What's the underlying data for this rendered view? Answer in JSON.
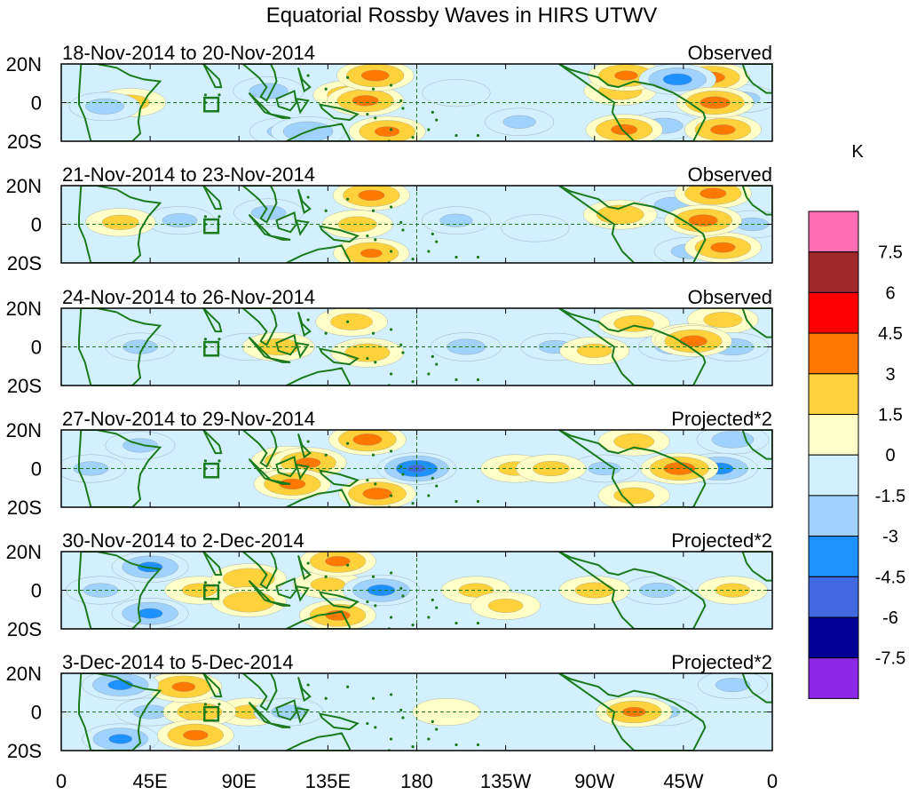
{
  "chart_data": {
    "type": "heatmap",
    "title": "Equatorial Rossby Waves in HIRS UTWV",
    "units": "K",
    "x_ticks": [
      "0",
      "45E",
      "90E",
      "135E",
      "180",
      "135W",
      "90W",
      "45W",
      "0"
    ],
    "x_range_deg": [
      0,
      360
    ],
    "y_ticks": [
      "20N",
      "0",
      "20S"
    ],
    "y_range_deg": [
      -20,
      20
    ],
    "colorbar": {
      "labels": [
        "7.5",
        "6",
        "4.5",
        "3",
        "1.5",
        "0",
        "-1.5",
        "-3",
        "-4.5",
        "-6",
        "-7.5"
      ],
      "levels": [
        9,
        7.5,
        6,
        4.5,
        3,
        1.5,
        0,
        -1.5,
        -3,
        -4.5,
        -6,
        -7.5,
        -9
      ],
      "colors": [
        "#ff6eb4",
        "#a0282d",
        "#ff0000",
        "#ff7800",
        "#ffd23c",
        "#ffffc8",
        "#d2f0ff",
        "#a0d2ff",
        "#1e90ff",
        "#4169e1",
        "#000096",
        "#8c28e6"
      ]
    },
    "panels": [
      {
        "date_range": "18-Nov-2014 to 20-Nov-2014",
        "kind": "Observed",
        "anomalies": [
          {
            "lon": 35,
            "lat": 0,
            "value": 1.8
          },
          {
            "lon": 22,
            "lat": -2,
            "value": -1.8
          },
          {
            "lon": 105,
            "lat": 6,
            "value": -1.8
          },
          {
            "lon": 113,
            "lat": -15,
            "value": -1.6
          },
          {
            "lon": 146,
            "lat": 4,
            "value": 2.2
          },
          {
            "lon": 154,
            "lat": 1,
            "value": 3.4
          },
          {
            "lon": 159,
            "lat": 14,
            "value": 3.5
          },
          {
            "lon": 165,
            "lat": -15,
            "value": 3.3
          },
          {
            "lon": 125,
            "lat": -15,
            "value": -2.6
          },
          {
            "lon": 200,
            "lat": 5,
            "value": -1.4
          },
          {
            "lon": 232,
            "lat": -10,
            "value": -1.5
          },
          {
            "lon": 283,
            "lat": 6,
            "value": 2.1
          },
          {
            "lon": 286,
            "lat": 14,
            "value": 3.2
          },
          {
            "lon": 285,
            "lat": -14,
            "value": 3.4
          },
          {
            "lon": 312,
            "lat": 12,
            "value": -3.6
          },
          {
            "lon": 305,
            "lat": -12,
            "value": -1.8
          },
          {
            "lon": 329,
            "lat": 13,
            "value": 3.5
          },
          {
            "lon": 331,
            "lat": 0,
            "value": 3.7
          },
          {
            "lon": 335,
            "lat": -14,
            "value": 3.3
          },
          {
            "lon": 345,
            "lat": 2,
            "value": -1.6
          }
        ]
      },
      {
        "date_range": "21-Nov-2014 to 23-Nov-2014",
        "kind": "Observed",
        "anomalies": [
          {
            "lon": 30,
            "lat": 1,
            "value": 1.7
          },
          {
            "lon": 60,
            "lat": 2,
            "value": -1.6
          },
          {
            "lon": 105,
            "lat": 6,
            "value": -1.6
          },
          {
            "lon": 150,
            "lat": 0,
            "value": 1.8
          },
          {
            "lon": 157,
            "lat": 15,
            "value": 3.4
          },
          {
            "lon": 157,
            "lat": -15,
            "value": 3.1
          },
          {
            "lon": 200,
            "lat": 2,
            "value": -1.5
          },
          {
            "lon": 240,
            "lat": -2,
            "value": -1.4
          },
          {
            "lon": 283,
            "lat": 5,
            "value": 2.4
          },
          {
            "lon": 310,
            "lat": 10,
            "value": -1.8
          },
          {
            "lon": 318,
            "lat": -14,
            "value": -1.7
          },
          {
            "lon": 330,
            "lat": 16,
            "value": 3.4
          },
          {
            "lon": 325,
            "lat": 2,
            "value": 3.6
          },
          {
            "lon": 335,
            "lat": -12,
            "value": 3.3
          },
          {
            "lon": 350,
            "lat": 0,
            "value": -1.5
          }
        ]
      },
      {
        "date_range": "24-Nov-2014 to 26-Nov-2014",
        "kind": "Observed",
        "anomalies": [
          {
            "lon": 40,
            "lat": 0,
            "value": -1.6
          },
          {
            "lon": 95,
            "lat": 0,
            "value": -1.4
          },
          {
            "lon": 110,
            "lat": 0,
            "value": 2.0
          },
          {
            "lon": 147,
            "lat": 13,
            "value": 2.0
          },
          {
            "lon": 155,
            "lat": -3,
            "value": 2.2
          },
          {
            "lon": 205,
            "lat": 0,
            "value": -1.8
          },
          {
            "lon": 250,
            "lat": 0,
            "value": -1.5
          },
          {
            "lon": 270,
            "lat": -2,
            "value": 1.6
          },
          {
            "lon": 290,
            "lat": 12,
            "value": 1.9
          },
          {
            "lon": 310,
            "lat": 0,
            "value": -1.7
          },
          {
            "lon": 318,
            "lat": 4,
            "value": 3.2
          },
          {
            "lon": 320,
            "lat": 3,
            "value": 3.5
          },
          {
            "lon": 340,
            "lat": 0,
            "value": -2.0
          },
          {
            "lon": 335,
            "lat": 14,
            "value": 1.8
          }
        ]
      },
      {
        "date_range": "27-Nov-2014 to 29-Nov-2014",
        "kind": "Projected*2",
        "anomalies": [
          {
            "lon": 15,
            "lat": 0,
            "value": -1.6
          },
          {
            "lon": 40,
            "lat": 12,
            "value": -1.6
          },
          {
            "lon": 115,
            "lat": 4,
            "value": 2.4
          },
          {
            "lon": 117,
            "lat": -8,
            "value": 3.4
          },
          {
            "lon": 125,
            "lat": 3,
            "value": 3.3
          },
          {
            "lon": 155,
            "lat": 15,
            "value": 3.6
          },
          {
            "lon": 160,
            "lat": -13,
            "value": 3.6
          },
          {
            "lon": 180,
            "lat": 0,
            "value": -4.8
          },
          {
            "lon": 230,
            "lat": 0,
            "value": 1.6
          },
          {
            "lon": 248,
            "lat": 0,
            "value": 1.7
          },
          {
            "lon": 275,
            "lat": 0,
            "value": -1.5
          },
          {
            "lon": 290,
            "lat": 14,
            "value": 1.9
          },
          {
            "lon": 290,
            "lat": -14,
            "value": 1.9
          },
          {
            "lon": 313,
            "lat": 0,
            "value": 3.8
          },
          {
            "lon": 333,
            "lat": 0,
            "value": -3.6
          },
          {
            "lon": 340,
            "lat": 15,
            "value": -2.0
          }
        ]
      },
      {
        "date_range": "30-Nov-2014 to 2-Dec-2014",
        "kind": "Projected*2",
        "anomalies": [
          {
            "lon": 45,
            "lat": 12,
            "value": -3.3
          },
          {
            "lon": 45,
            "lat": -12,
            "value": -3.3
          },
          {
            "lon": 20,
            "lat": 0,
            "value": -1.6
          },
          {
            "lon": 70,
            "lat": 0,
            "value": 1.6
          },
          {
            "lon": 95,
            "lat": 6,
            "value": 2.8
          },
          {
            "lon": 95,
            "lat": -6,
            "value": 2.8
          },
          {
            "lon": 140,
            "lat": 15,
            "value": 3.3
          },
          {
            "lon": 140,
            "lat": -13,
            "value": 3.3
          },
          {
            "lon": 135,
            "lat": 3,
            "value": 1.6
          },
          {
            "lon": 162,
            "lat": 0,
            "value": -3.5
          },
          {
            "lon": 210,
            "lat": 0,
            "value": 1.6
          },
          {
            "lon": 225,
            "lat": -8,
            "value": 1.6
          },
          {
            "lon": 270,
            "lat": 0,
            "value": 1.8
          },
          {
            "lon": 302,
            "lat": 0,
            "value": -1.7
          },
          {
            "lon": 340,
            "lat": 0,
            "value": 1.6
          }
        ]
      },
      {
        "date_range": "3-Dec-2014 to 5-Dec-2014",
        "kind": "Projected*2",
        "anomalies": [
          {
            "lon": 30,
            "lat": 14,
            "value": -3.3
          },
          {
            "lon": 30,
            "lat": -14,
            "value": -3.2
          },
          {
            "lon": 45,
            "lat": 0,
            "value": -1.6
          },
          {
            "lon": 62,
            "lat": 13,
            "value": 3.2
          },
          {
            "lon": 68,
            "lat": -12,
            "value": 3.3
          },
          {
            "lon": 70,
            "lat": 0,
            "value": 2.2
          },
          {
            "lon": 95,
            "lat": 0,
            "value": 1.6
          },
          {
            "lon": 115,
            "lat": 0,
            "value": -1.6
          },
          {
            "lon": 195,
            "lat": 0,
            "value": 1.4
          },
          {
            "lon": 290,
            "lat": 0,
            "value": 3.2
          },
          {
            "lon": 305,
            "lat": 0,
            "value": -1.5
          },
          {
            "lon": 340,
            "lat": 14,
            "value": -1.6
          }
        ]
      }
    ]
  }
}
